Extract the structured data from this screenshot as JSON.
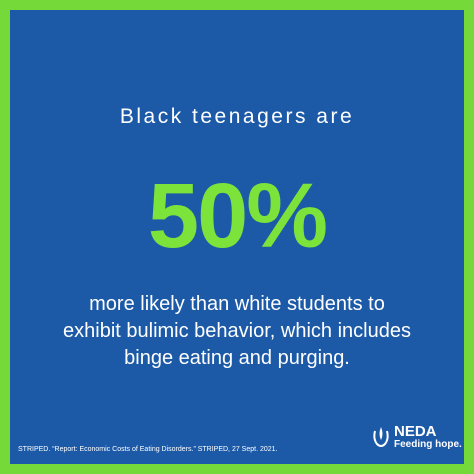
{
  "headline": "Black teenagers are",
  "statistic": "50%",
  "body": [
    "more likely than white students to",
    "exhibit bulimic behavior, which includes",
    "binge eating and purging."
  ],
  "citation": "STRIPED. “Report: Economic Costs of Eating Disorders.” STRIPED, 27 Sept. 2021.",
  "logo": {
    "name": "NEDA",
    "tagline": "Feeding hope."
  }
}
